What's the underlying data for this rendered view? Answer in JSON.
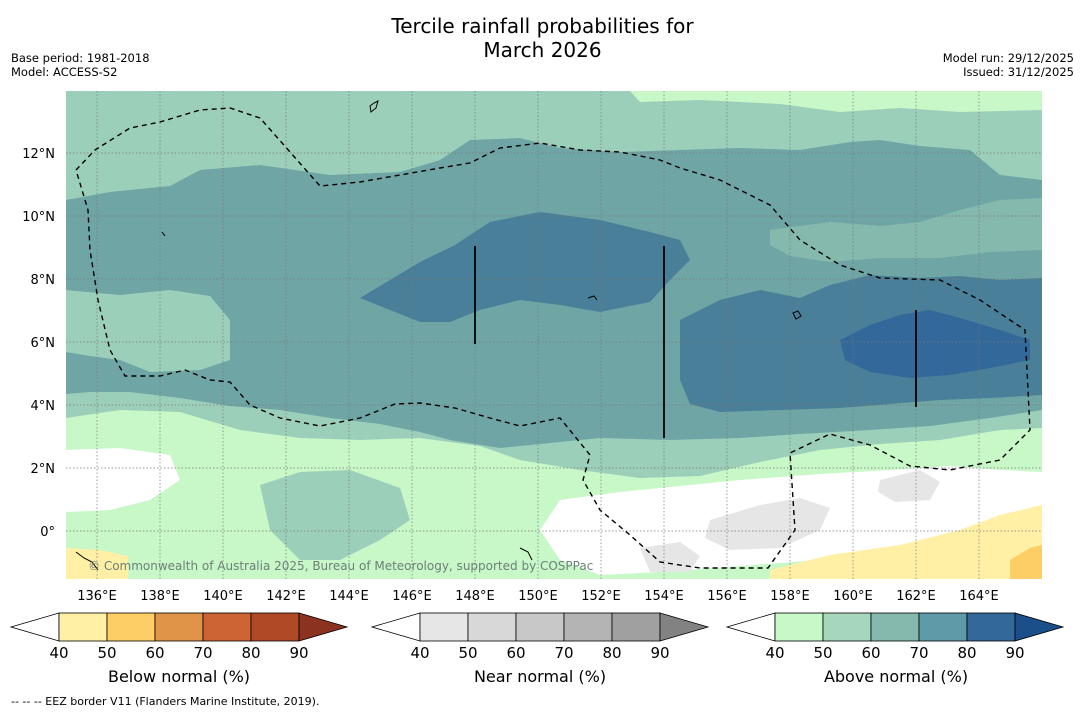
{
  "title": {
    "line1": "Tercile rainfall probabilities for",
    "line2": "March 2026"
  },
  "meta_left": {
    "base_period": "Base period: 1981-2018",
    "model": "Model: ACCESS-S2"
  },
  "meta_right": {
    "model_run": "Model run: 29/12/2025",
    "issued": "Issued: 31/12/2025"
  },
  "map": {
    "x_ticks": [
      "136°E",
      "138°E",
      "140°E",
      "142°E",
      "144°E",
      "146°E",
      "148°E",
      "150°E",
      "152°E",
      "154°E",
      "156°E",
      "158°E",
      "160°E",
      "162°E",
      "164°E"
    ],
    "x_tick_values": [
      136,
      138,
      140,
      142,
      144,
      146,
      148,
      150,
      152,
      154,
      156,
      158,
      160,
      162,
      164
    ],
    "y_ticks": [
      "12°N",
      "10°N",
      "8°N",
      "6°N",
      "4°N",
      "2°N",
      "0°"
    ],
    "y_tick_values": [
      12,
      10,
      8,
      6,
      4,
      2,
      0
    ],
    "lon_range": [
      135,
      166
    ],
    "lat_range": [
      -1.5,
      14
    ],
    "gridlines": true,
    "copyright": "© Commonwealth of Australia 2025, Bureau of Meteorology, supported by COSPPac"
  },
  "colorbars": [
    {
      "label": "Below normal (%)",
      "ticks": [
        "40",
        "50",
        "60",
        "70",
        "80",
        "90"
      ],
      "colors": [
        "#ffffff",
        "#fff0a6",
        "#fdcd66",
        "#e09448",
        "#cc6433",
        "#b04a26",
        "#8c3220"
      ]
    },
    {
      "label": "Near normal (%)",
      "ticks": [
        "40",
        "50",
        "60",
        "70",
        "80",
        "90"
      ],
      "colors": [
        "#ffffff",
        "#e6e6e6",
        "#d8d8d8",
        "#c8c8c8",
        "#b4b4b4",
        "#a0a0a0",
        "#828282"
      ]
    },
    {
      "label": "Above normal (%)",
      "ticks": [
        "40",
        "50",
        "60",
        "70",
        "80",
        "90"
      ],
      "colors": [
        "#ffffff",
        "#c8f7c8",
        "#a6d6bb",
        "#86b9ad",
        "#5f9aa8",
        "#33689a",
        "#1a4f8a"
      ]
    }
  ],
  "footnote": "--  --  -- EEZ border V11 (Flanders Marine Institute, 2019)."
}
